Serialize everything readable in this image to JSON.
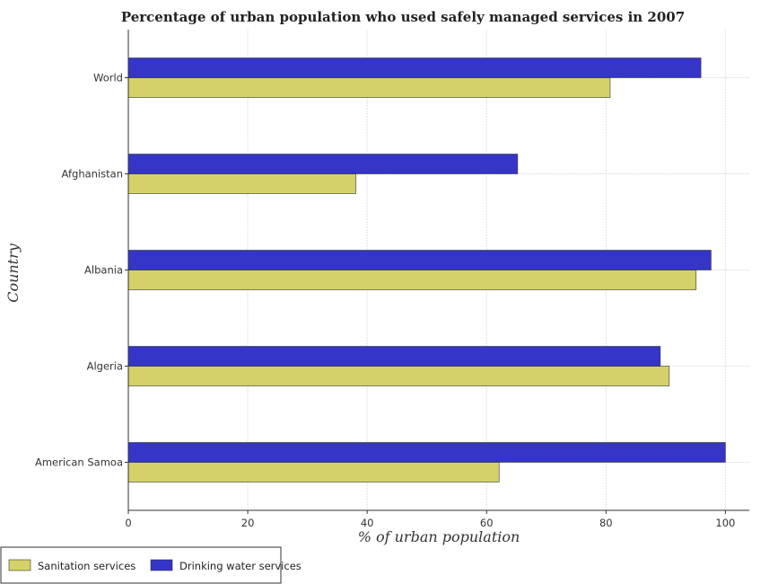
{
  "chart_data": {
    "type": "bar",
    "orientation": "horizontal",
    "title": "Percentage of urban population who used safely managed services in 2007",
    "xlabel": "% of urban population",
    "ylabel": "Country",
    "categories": [
      "World",
      "Afghanistan",
      "Albania",
      "Algeria",
      "American Samoa"
    ],
    "series": [
      {
        "name": "Sanitation services",
        "color": "#d4d16a",
        "values": [
          80.7,
          38.1,
          95.1,
          90.6,
          62.1
        ]
      },
      {
        "name": "Drinking water services",
        "color": "#3535c8",
        "values": [
          95.9,
          65.2,
          97.6,
          89.1,
          100.0
        ]
      }
    ],
    "xlim": [
      0,
      104
    ],
    "xticks": [
      0,
      20,
      40,
      60,
      80,
      100
    ],
    "grid": true,
    "legend_position": "bottom-left"
  }
}
